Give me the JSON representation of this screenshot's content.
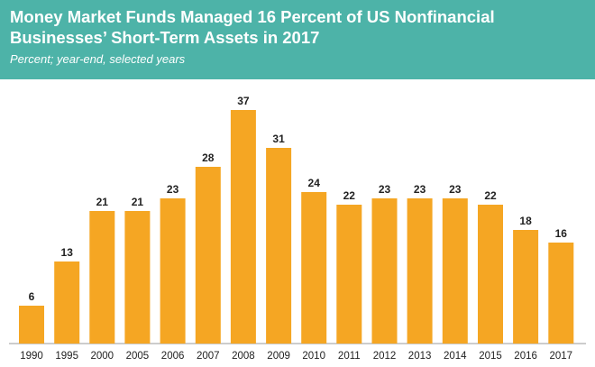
{
  "header": {
    "title": "Money Market Funds Managed 16 Percent of US Nonfinancial Businesses’ Short-Term Assets in 2017",
    "subtitle": "Percent; year-end, selected years"
  },
  "colors": {
    "header_bg": "#4db3a8",
    "bar": "#f5a623",
    "axis": "#999999"
  },
  "chart_data": {
    "type": "bar",
    "categories": [
      "1990",
      "1995",
      "2000",
      "2005",
      "2006",
      "2007",
      "2008",
      "2009",
      "2010",
      "2011",
      "2012",
      "2013",
      "2014",
      "2015",
      "2016",
      "2017"
    ],
    "values": [
      6,
      13,
      21,
      21,
      23,
      28,
      37,
      31,
      24,
      22,
      23,
      23,
      23,
      22,
      18,
      16
    ],
    "title": "Money Market Funds Managed 16 Percent of US Nonfinancial Businesses’ Short-Term Assets in 2017",
    "subtitle": "Percent; year-end, selected years",
    "xlabel": "",
    "ylabel": "",
    "ylim": [
      0,
      40
    ],
    "grid": false,
    "legend": "none"
  }
}
